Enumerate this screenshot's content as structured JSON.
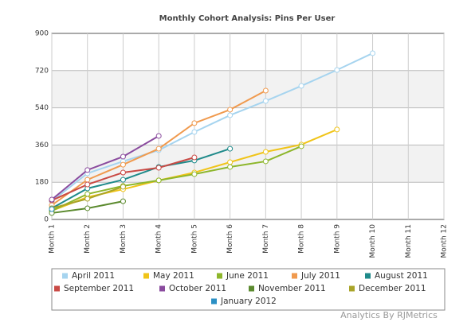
{
  "chart_data": {
    "type": "line",
    "title": "Monthly Cohort Analysis: Pins Per User",
    "categories": [
      "Month 1",
      "Month 2",
      "Month 3",
      "Month 4",
      "Month 5",
      "Month 6",
      "Month 7",
      "Month 8",
      "Month 9",
      "Month 10",
      "Month 11",
      "Month 12"
    ],
    "ylim": [
      0,
      900
    ],
    "yticks": [
      0,
      180,
      360,
      540,
      720,
      900
    ],
    "grid": true,
    "series": [
      {
        "name": "April 2011",
        "color": "#a6d4ef",
        "values": [
          88,
          223,
          281,
          335,
          423,
          504,
          573,
          646,
          723,
          804,
          null,
          null
        ]
      },
      {
        "name": "May 2011",
        "color": "#f0c419",
        "values": [
          42,
          108,
          146,
          189,
          227,
          277,
          327,
          362,
          435,
          null,
          null,
          null
        ]
      },
      {
        "name": "June 2011",
        "color": "#8db62b",
        "values": [
          42,
          123,
          162,
          189,
          219,
          254,
          281,
          354,
          null,
          null,
          null,
          null
        ]
      },
      {
        "name": "July 2011",
        "color": "#f09a4e",
        "values": [
          69,
          192,
          265,
          342,
          466,
          531,
          623,
          null,
          null,
          null,
          null,
          null
        ]
      },
      {
        "name": "August 2011",
        "color": "#1f8a8a",
        "values": [
          54,
          150,
          192,
          254,
          285,
          342,
          null,
          null,
          null,
          null,
          null,
          null
        ]
      },
      {
        "name": "September 2011",
        "color": "#c94a45",
        "values": [
          92,
          169,
          227,
          250,
          300,
          null,
          null,
          null,
          null,
          null,
          null,
          null
        ]
      },
      {
        "name": "October 2011",
        "color": "#8a4b9e",
        "values": [
          96,
          239,
          304,
          404,
          null,
          null,
          null,
          null,
          null,
          null,
          null,
          null
        ]
      },
      {
        "name": "November 2011",
        "color": "#5b8a2e",
        "values": [
          31,
          54,
          88,
          null,
          null,
          null,
          null,
          null,
          null,
          null,
          null,
          null
        ]
      },
      {
        "name": "December 2011",
        "color": "#a9a428",
        "values": [
          54,
          100,
          158,
          null,
          null,
          null,
          null,
          null,
          null,
          null,
          null,
          null
        ]
      },
      {
        "name": "January 2012",
        "color": "#2a8fc4",
        "values": [
          50,
          null,
          null,
          null,
          null,
          null,
          null,
          null,
          null,
          null,
          null,
          null
        ]
      }
    ]
  },
  "footer": "Analytics By RJMetrics"
}
